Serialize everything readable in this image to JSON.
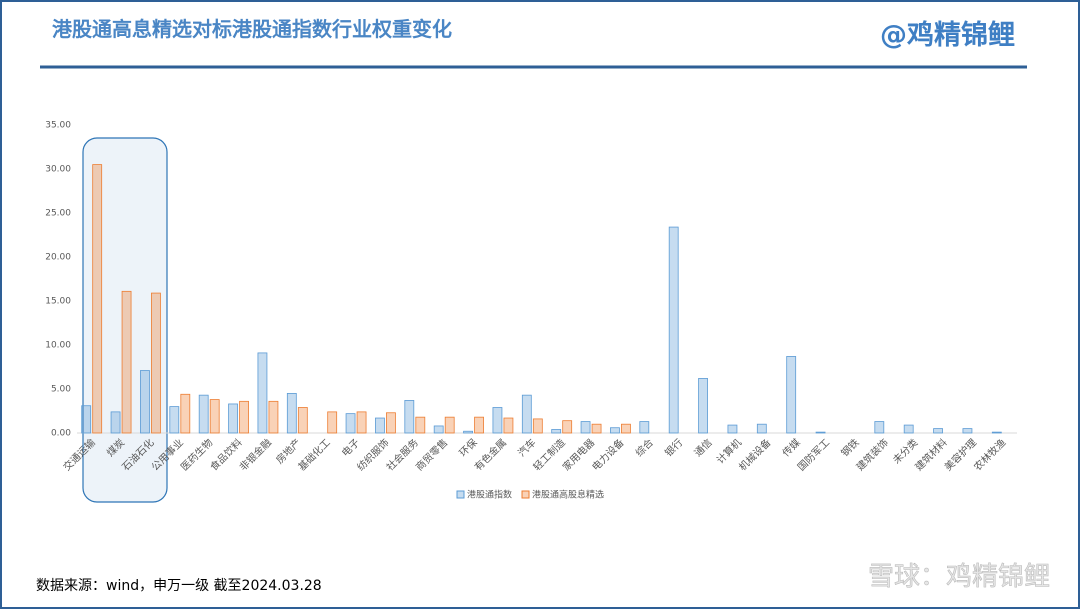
{
  "header": {
    "title": "港股通高息精选对标港股通指数行业权重变化",
    "brand": "@鸡精锦鲤"
  },
  "footer": {
    "source": "数据来源：wind，申万一级  截至2024.03.28",
    "watermark": "雪球：鸡精锦鲤"
  },
  "chart_data": {
    "type": "bar",
    "categories": [
      "交通运输",
      "煤炭",
      "石油石化",
      "公用事业",
      "医药生物",
      "食品饮料",
      "非银金融",
      "房地产",
      "基础化工",
      "电子",
      "纺织服饰",
      "社会服务",
      "商贸零售",
      "环保",
      "有色金属",
      "汽车",
      "轻工制造",
      "家用电器",
      "电力设备",
      "综合",
      "银行",
      "通信",
      "计算机",
      "机械设备",
      "传媒",
      "国防军工",
      "钢铁",
      "建筑装饰",
      "未分类",
      "建筑材料",
      "美容护理",
      "农林牧渔"
    ],
    "series": [
      {
        "name": "港股通指数",
        "color": "#5b9bd5",
        "values": [
          3.1,
          2.4,
          7.1,
          3.0,
          4.3,
          3.3,
          9.1,
          4.5,
          0,
          2.2,
          1.7,
          3.7,
          0.8,
          0.2,
          2.9,
          4.3,
          0.4,
          1.3,
          0.6,
          1.3,
          23.4,
          6.2,
          0.9,
          1.0,
          8.7,
          0.1,
          0,
          1.3,
          0.9,
          0.5,
          0.5,
          0.1
        ]
      },
      {
        "name": "港股通高股息精选",
        "color": "#ed7d31",
        "values": [
          30.5,
          16.1,
          15.9,
          4.4,
          3.8,
          3.6,
          3.6,
          2.9,
          2.4,
          2.4,
          2.3,
          1.8,
          1.8,
          1.8,
          1.7,
          1.6,
          1.4,
          1.0,
          1.0,
          0,
          0,
          0,
          0,
          0,
          0,
          0,
          0,
          0,
          0,
          0,
          0,
          0
        ]
      }
    ],
    "ylim": [
      0,
      35
    ],
    "yticks": [
      {
        "value": 0,
        "label": "0.00"
      },
      {
        "value": 5,
        "label": "5.00"
      },
      {
        "value": 10,
        "label": "10.00"
      },
      {
        "value": 15,
        "label": "15.00"
      },
      {
        "value": 20,
        "label": "20.00"
      },
      {
        "value": 25,
        "label": "25.00"
      },
      {
        "value": 30,
        "label": "30.00"
      },
      {
        "value": 35,
        "label": "35.00"
      }
    ],
    "grid": false,
    "legend": "bottom"
  }
}
